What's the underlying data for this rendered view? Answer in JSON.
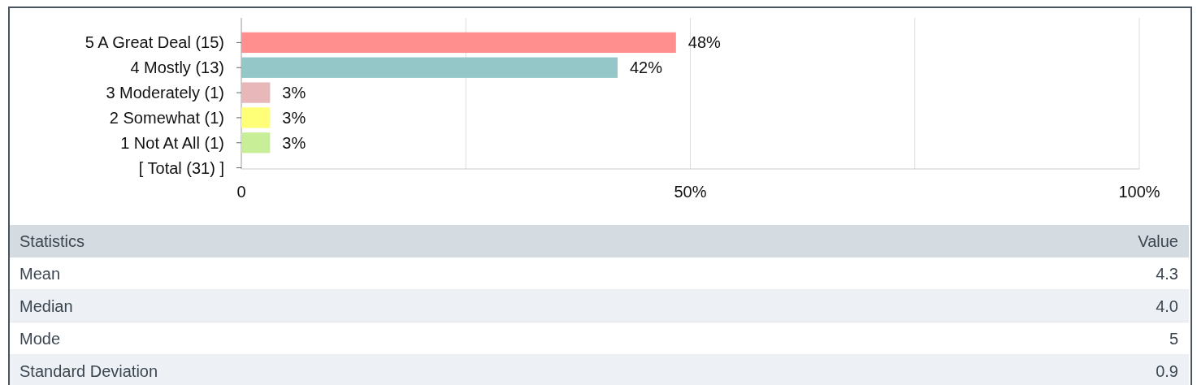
{
  "chart_data": {
    "type": "bar",
    "orientation": "horizontal",
    "categories": [
      "5 A Great Deal (15)",
      "4 Mostly (13)",
      "3 Moderately (1)",
      "2 Somewhat (1)",
      "1 Not At All (1)",
      "[ Total (31) ]"
    ],
    "values": [
      48.4,
      41.9,
      3.2,
      3.2,
      3.2,
      null
    ],
    "colors": [
      "#ff8f8f",
      "#94c7c7",
      "#e8b7ba",
      "#ffff77",
      "#c8ef98",
      null
    ],
    "value_labels": [
      "48%",
      "42%",
      "3%",
      "3%",
      "3%",
      null
    ],
    "xlim": [
      0,
      100
    ],
    "xticks": [
      0,
      {
        "value": 25,
        "label": null
      },
      {
        "value": 50,
        "label": "50%"
      },
      {
        "value": 75,
        "label": null
      },
      {
        "value": 100,
        "label": "100%"
      }
    ],
    "grid": "x",
    "annotations": [
      "Statistics",
      "Value",
      "Mean",
      "4.3",
      "Median",
      "4.0",
      "Mode",
      "5",
      "Standard Deviation",
      "0.9"
    ]
  }
}
